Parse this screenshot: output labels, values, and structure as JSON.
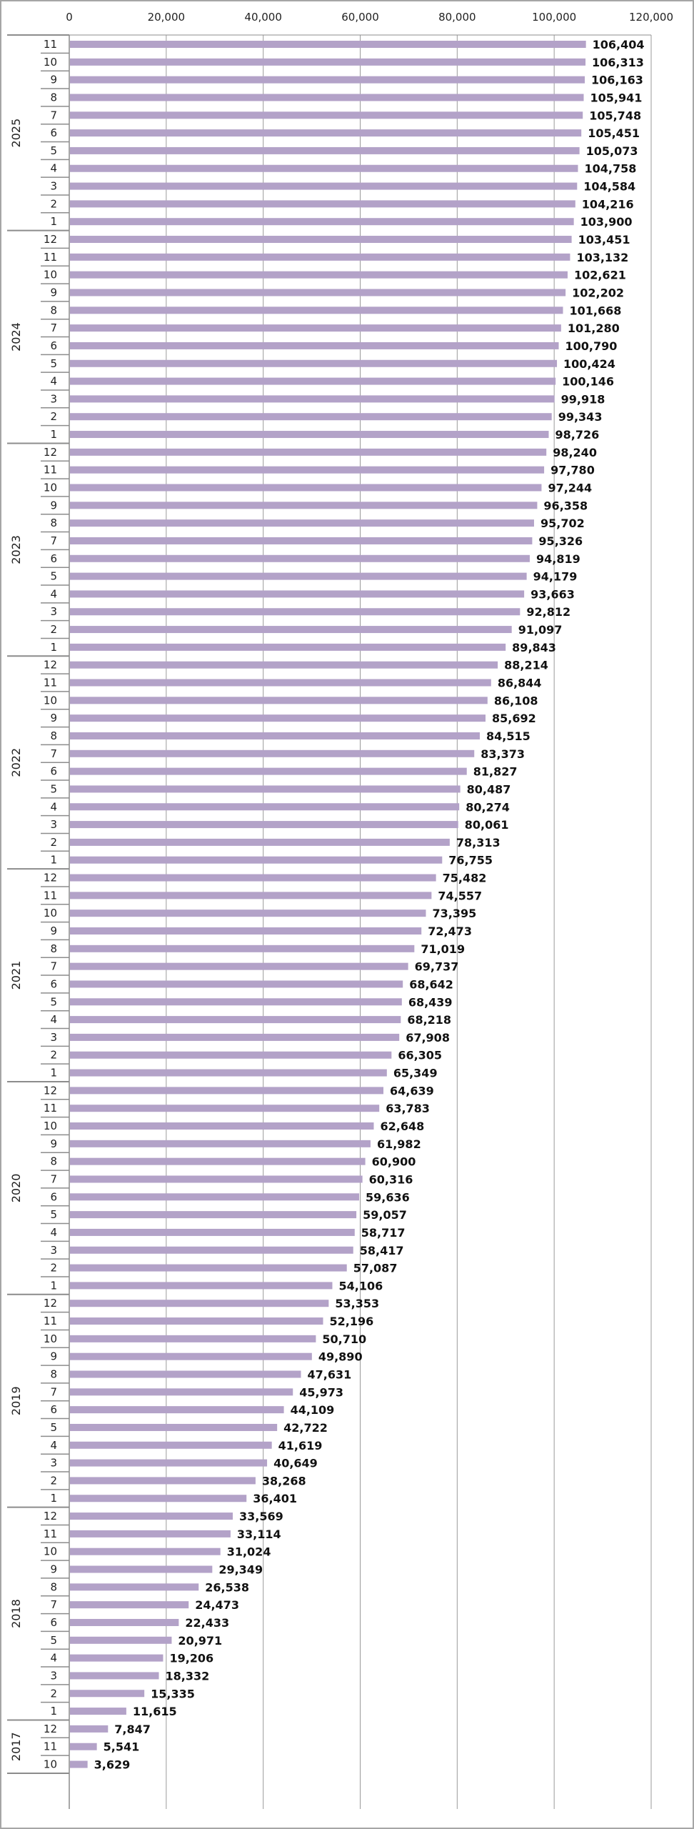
{
  "chart_data": {
    "type": "bar",
    "orientation": "horizontal",
    "title": "",
    "xlabel": "",
    "ylabel": "",
    "xlim": [
      0,
      120000
    ],
    "x_ticks": [
      "0",
      "20,000",
      "40,000",
      "60,000",
      "80,000",
      "100,000",
      "120,000"
    ],
    "x_axis_position": "top",
    "grid": true,
    "legend": "none",
    "bar_color": "#b3a2c8",
    "groups": [
      {
        "year": "2025",
        "months": [
          "11",
          "10",
          "9",
          "8",
          "7",
          "6",
          "5",
          "4",
          "3",
          "2",
          "1"
        ],
        "values": [
          106404,
          106313,
          106163,
          105941,
          105748,
          105451,
          105073,
          104758,
          104584,
          104216,
          103900
        ]
      },
      {
        "year": "2024",
        "months": [
          "12",
          "11",
          "10",
          "9",
          "8",
          "7",
          "6",
          "5",
          "4",
          "3",
          "2",
          "1"
        ],
        "values": [
          103451,
          103132,
          102621,
          102202,
          101668,
          101280,
          100790,
          100424,
          100146,
          99918,
          99343,
          98726
        ]
      },
      {
        "year": "2023",
        "months": [
          "12",
          "11",
          "10",
          "9",
          "8",
          "7",
          "6",
          "5",
          "4",
          "3",
          "2",
          "1"
        ],
        "values": [
          98240,
          97780,
          97244,
          96358,
          95702,
          95326,
          94819,
          94179,
          93663,
          92812,
          91097,
          89843
        ]
      },
      {
        "year": "2022",
        "months": [
          "12",
          "11",
          "10",
          "9",
          "8",
          "7",
          "6",
          "5",
          "4",
          "3",
          "2",
          "1"
        ],
        "values": [
          88214,
          86844,
          86108,
          85692,
          84515,
          83373,
          81827,
          80487,
          80274,
          80061,
          78313,
          76755
        ]
      },
      {
        "year": "2021",
        "months": [
          "12",
          "11",
          "10",
          "9",
          "8",
          "7",
          "6",
          "5",
          "4",
          "3",
          "2",
          "1"
        ],
        "values": [
          75482,
          74557,
          73395,
          72473,
          71019,
          69737,
          68642,
          68439,
          68218,
          67908,
          66305,
          65349
        ]
      },
      {
        "year": "2020",
        "months": [
          "12",
          "11",
          "10",
          "9",
          "8",
          "7",
          "6",
          "5",
          "4",
          "3",
          "2",
          "1"
        ],
        "values": [
          64639,
          63783,
          62648,
          61982,
          60900,
          60316,
          59636,
          59057,
          58717,
          58417,
          57087,
          54106
        ]
      },
      {
        "year": "2019",
        "months": [
          "12",
          "11",
          "10",
          "9",
          "8",
          "7",
          "6",
          "5",
          "4",
          "3",
          "2",
          "1"
        ],
        "values": [
          53353,
          52196,
          50710,
          49890,
          47631,
          45973,
          44109,
          42722,
          41619,
          40649,
          38268,
          36401
        ]
      },
      {
        "year": "2018",
        "months": [
          "12",
          "11",
          "10",
          "9",
          "8",
          "7",
          "6",
          "5",
          "4",
          "3",
          "2",
          "1"
        ],
        "values": [
          33569,
          33114,
          31024,
          29349,
          26538,
          24473,
          22433,
          20971,
          19206,
          18332,
          15335,
          11615
        ]
      },
      {
        "year": "2017",
        "months": [
          "12",
          "11",
          "10"
        ],
        "values": [
          7847,
          5541,
          3629
        ]
      }
    ]
  }
}
